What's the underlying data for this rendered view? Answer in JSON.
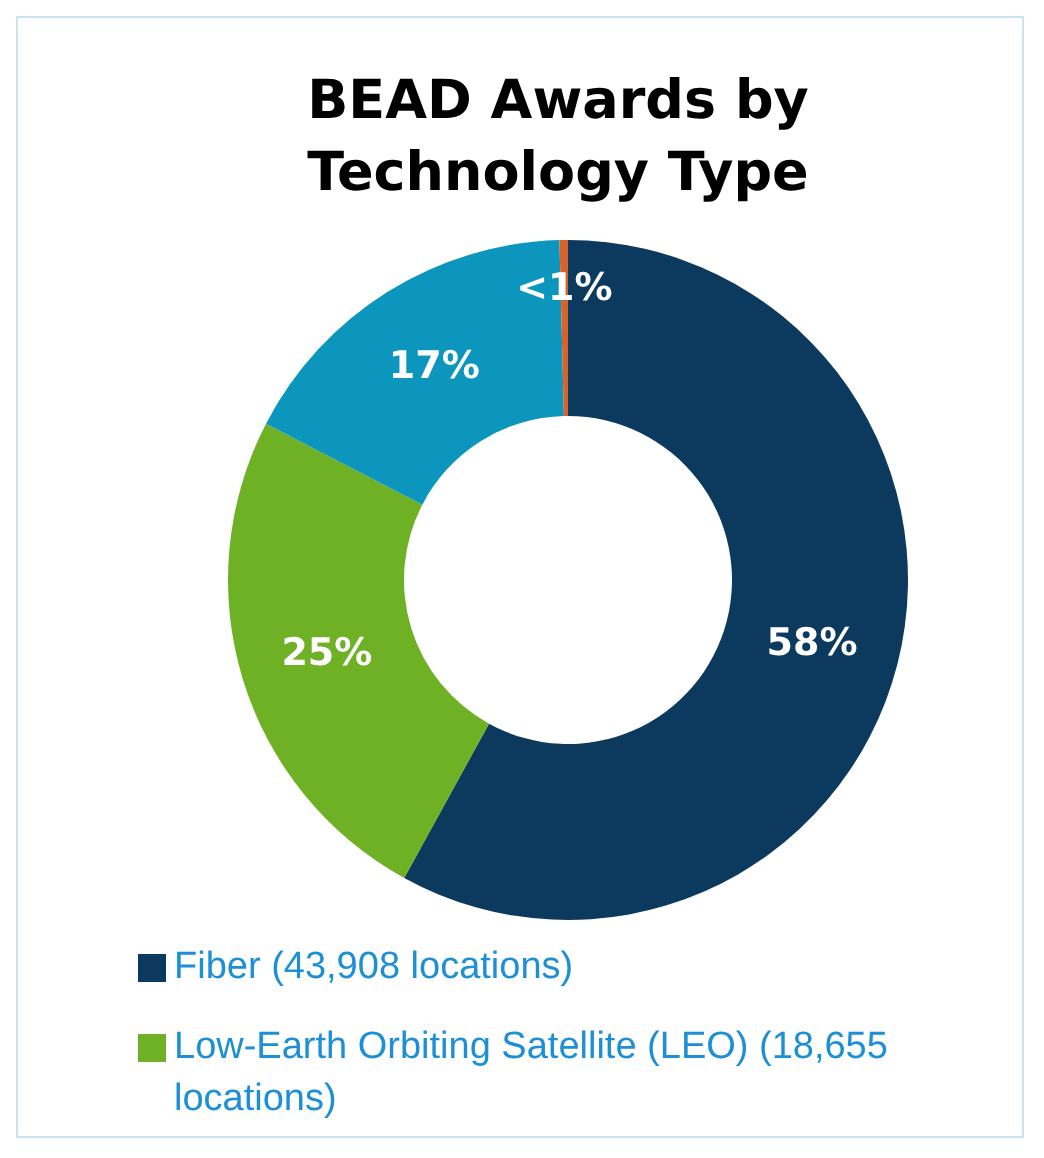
{
  "chart_data": {
    "type": "donut",
    "title": "BEAD Awards by Technology Type",
    "categories": [
      "Fiber (43,908 locations)",
      "Low-Earth Orbiting Satellite (LEO) (18,655 locations)",
      null,
      null
    ],
    "values": [
      58,
      24.6,
      17,
      0.4
    ],
    "colors": [
      "#0b3a5e",
      "#6eb124",
      "#0c96bd",
      "#d9622b"
    ],
    "value_labels": [
      "58%",
      "25%",
      "17%",
      "<1%"
    ],
    "legend": "bottom"
  }
}
